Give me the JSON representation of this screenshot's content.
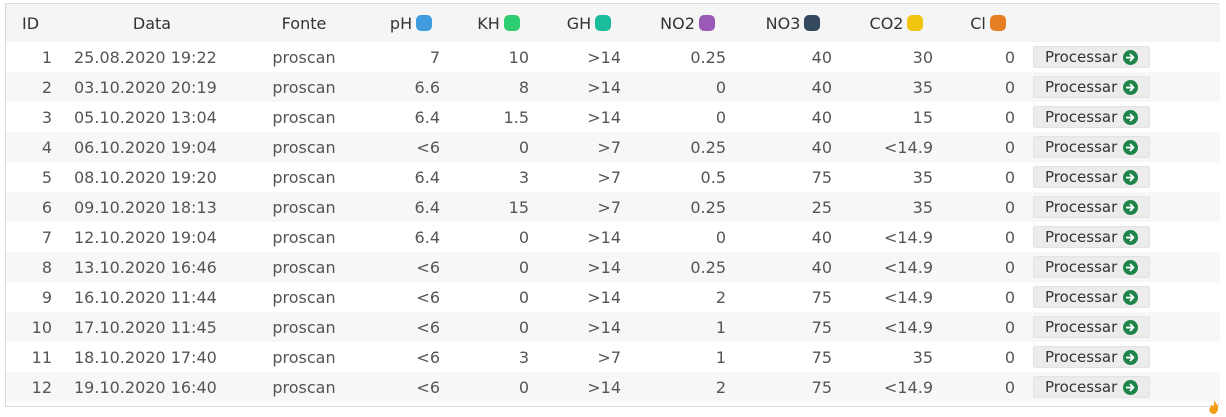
{
  "colors": {
    "pH": "#3f9ae0",
    "KH": "#2ecc71",
    "GH": "#1abc9c",
    "NO2": "#9b59b6",
    "NO3": "#34495e",
    "CO2": "#f1c40f",
    "Cl": "#e67e22",
    "processar_icon": "#1e8449"
  },
  "headers": {
    "id": "ID",
    "data": "Data",
    "fonte": "Fonte",
    "ph": "pH",
    "kh": "KH",
    "gh": "GH",
    "no2": "NO2",
    "no3": "NO3",
    "co2": "CO2",
    "cl": "Cl"
  },
  "button_label": "Processar",
  "button_icon": "arrow-circle-right-icon",
  "rows": [
    {
      "id": "1",
      "date": "25.08.2020 19:22",
      "source": "proscan",
      "ph": "7",
      "kh": "10",
      "gh": ">14",
      "no2": "0.25",
      "no3": "40",
      "co2": "30",
      "cl": "0"
    },
    {
      "id": "2",
      "date": "03.10.2020 20:19",
      "source": "proscan",
      "ph": "6.6",
      "kh": "8",
      "gh": ">14",
      "no2": "0",
      "no3": "40",
      "co2": "35",
      "cl": "0"
    },
    {
      "id": "3",
      "date": "05.10.2020 13:04",
      "source": "proscan",
      "ph": "6.4",
      "kh": "1.5",
      "gh": ">14",
      "no2": "0",
      "no3": "40",
      "co2": "15",
      "cl": "0"
    },
    {
      "id": "4",
      "date": "06.10.2020 19:04",
      "source": "proscan",
      "ph": "<6",
      "kh": "0",
      "gh": ">7",
      "no2": "0.25",
      "no3": "40",
      "co2": "<14.9",
      "cl": "0"
    },
    {
      "id": "5",
      "date": "08.10.2020 19:20",
      "source": "proscan",
      "ph": "6.4",
      "kh": "3",
      "gh": ">7",
      "no2": "0.5",
      "no3": "75",
      "co2": "35",
      "cl": "0"
    },
    {
      "id": "6",
      "date": "09.10.2020 18:13",
      "source": "proscan",
      "ph": "6.4",
      "kh": "15",
      "gh": ">7",
      "no2": "0.25",
      "no3": "25",
      "co2": "35",
      "cl": "0"
    },
    {
      "id": "7",
      "date": "12.10.2020 19:04",
      "source": "proscan",
      "ph": "6.4",
      "kh": "0",
      "gh": ">14",
      "no2": "0",
      "no3": "40",
      "co2": "<14.9",
      "cl": "0"
    },
    {
      "id": "8",
      "date": "13.10.2020 16:46",
      "source": "proscan",
      "ph": "<6",
      "kh": "0",
      "gh": ">14",
      "no2": "0.25",
      "no3": "40",
      "co2": "<14.9",
      "cl": "0"
    },
    {
      "id": "9",
      "date": "16.10.2020 11:44",
      "source": "proscan",
      "ph": "<6",
      "kh": "0",
      "gh": ">14",
      "no2": "2",
      "no3": "75",
      "co2": "<14.9",
      "cl": "0"
    },
    {
      "id": "10",
      "date": "17.10.2020 11:45",
      "source": "proscan",
      "ph": "<6",
      "kh": "0",
      "gh": ">14",
      "no2": "1",
      "no3": "75",
      "co2": "<14.9",
      "cl": "0"
    },
    {
      "id": "11",
      "date": "18.10.2020 17:40",
      "source": "proscan",
      "ph": "<6",
      "kh": "3",
      "gh": ">7",
      "no2": "1",
      "no3": "75",
      "co2": "35",
      "cl": "0"
    },
    {
      "id": "12",
      "date": "19.10.2020 16:40",
      "source": "proscan",
      "ph": "<6",
      "kh": "0",
      "gh": ">14",
      "no2": "2",
      "no3": "75",
      "co2": "<14.9",
      "cl": "0"
    }
  ]
}
